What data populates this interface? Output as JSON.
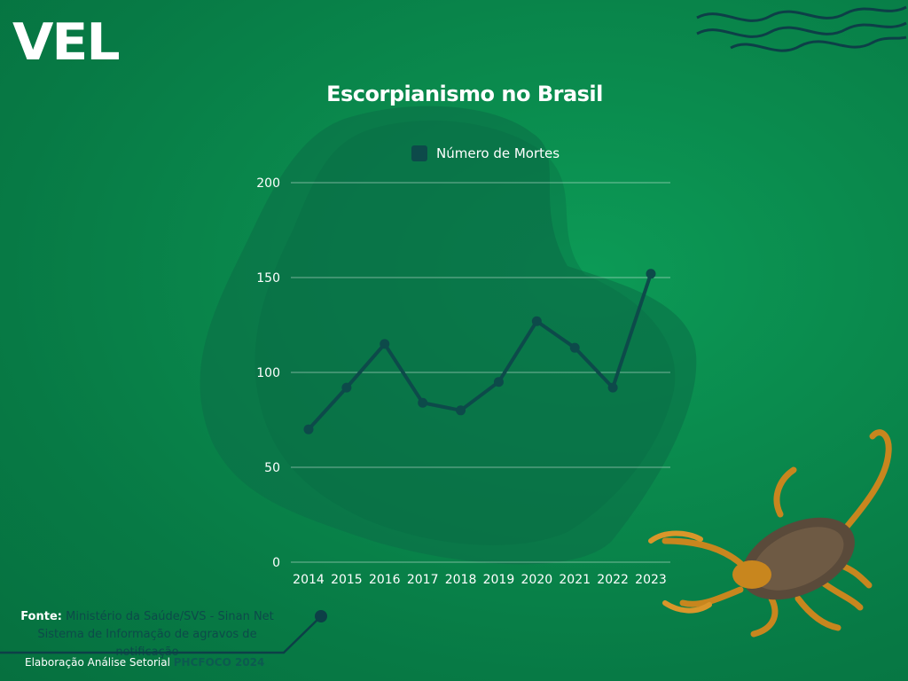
{
  "logo": {
    "text": "VEL"
  },
  "colors": {
    "line": "#0d4a4a",
    "grid": "#ffffff",
    "text": "#ffffff"
  },
  "chart_data": {
    "type": "line",
    "title": "Escorpianismo no Brasil",
    "categories": [
      "2014",
      "2015",
      "2016",
      "2017",
      "2018",
      "2019",
      "2020",
      "2021",
      "2022",
      "2023"
    ],
    "series": [
      {
        "name": "Número de Mortes",
        "values": [
          70,
          92,
          115,
          84,
          80,
          95,
          127,
          113,
          92,
          152
        ]
      }
    ],
    "ylim": [
      0,
      200
    ],
    "yticks": [
      "0",
      "50",
      "100",
      "150",
      "200"
    ],
    "xlabel": "",
    "ylabel": "",
    "legend": "top-center",
    "grid": true
  },
  "footer": {
    "source_label": "Fonte:",
    "source_text": "Ministério da Saúde/SVS  - Sinan Net",
    "source_line2": "Sistema de Informação de agravos de notificação",
    "credit_prefix": "Elaboração Análise Setorial",
    "credit_brand": "PHCFOCO 2024"
  }
}
